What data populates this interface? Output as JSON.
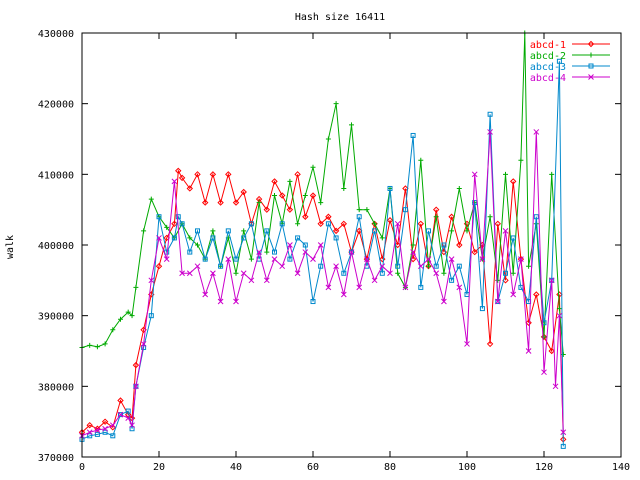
{
  "chart_data": {
    "type": "line",
    "title": "Hash size 16411",
    "xlabel": "",
    "ylabel": "walk",
    "xlim": [
      0,
      140
    ],
    "ylim": [
      370000,
      430000
    ],
    "xticks": [
      0,
      20,
      40,
      60,
      80,
      100,
      120,
      140
    ],
    "yticks": [
      370000,
      380000,
      390000,
      400000,
      410000,
      420000,
      430000
    ],
    "xtick_labels": [
      "0",
      "20",
      "40",
      "60",
      "80",
      "100",
      "120",
      "140"
    ],
    "ytick_labels": [
      "370000",
      "380000",
      "390000",
      "400000",
      "410000",
      "420000",
      "430000"
    ],
    "grid": false,
    "legend_position": "top-right",
    "series": [
      {
        "name": "abcd-1",
        "color": "#ff0000",
        "marker": "diamond",
        "x": [
          0,
          2,
          4,
          6,
          8,
          10,
          12,
          13,
          14,
          16,
          18,
          20,
          22,
          24,
          25,
          26,
          28,
          30,
          32,
          34,
          36,
          38,
          40,
          42,
          44,
          46,
          48,
          50,
          52,
          54,
          56,
          58,
          60,
          62,
          64,
          66,
          68,
          70,
          72,
          74,
          76,
          78,
          80,
          82,
          84,
          86,
          88,
          90,
          92,
          94,
          96,
          98,
          100,
          102,
          104,
          106,
          108,
          110,
          112,
          114,
          116,
          118,
          120,
          122,
          124,
          125
        ],
        "values": [
          373500,
          374500,
          374000,
          375000,
          374200,
          378000,
          376000,
          375500,
          383000,
          388000,
          393000,
          397000,
          401000,
          403000,
          410500,
          409500,
          408000,
          410000,
          406000,
          410000,
          406000,
          410000,
          406000,
          407500,
          403000,
          406500,
          405000,
          409000,
          407000,
          405000,
          410000,
          404000,
          407000,
          403000,
          404000,
          402000,
          403000,
          399000,
          402000,
          398000,
          403000,
          398000,
          403500,
          400000,
          408000,
          398000,
          403000,
          397000,
          405000,
          399000,
          404000,
          400000,
          403000,
          399000,
          400000,
          386000,
          403000,
          395000,
          409000,
          398000,
          389000,
          393000,
          387000,
          385000,
          393000,
          372500
        ]
      },
      {
        "name": "abcd-2",
        "color": "#00aa00",
        "marker": "plus",
        "x": [
          0,
          2,
          4,
          6,
          8,
          10,
          12,
          13,
          14,
          16,
          18,
          20,
          22,
          24,
          26,
          28,
          30,
          32,
          34,
          36,
          38,
          40,
          42,
          44,
          46,
          48,
          50,
          52,
          54,
          56,
          58,
          60,
          62,
          64,
          66,
          68,
          70,
          72,
          74,
          76,
          78,
          80,
          82,
          84,
          86,
          88,
          90,
          92,
          94,
          96,
          98,
          100,
          102,
          104,
          106,
          108,
          110,
          112,
          114,
          115,
          116,
          118,
          120,
          122,
          124,
          125
        ],
        "values": [
          385500,
          385800,
          385600,
          386000,
          388000,
          389500,
          390500,
          390000,
          394000,
          402000,
          406500,
          404000,
          402500,
          401000,
          403000,
          401000,
          400000,
          398000,
          402000,
          397000,
          401000,
          396000,
          402000,
          398000,
          406000,
          399000,
          407000,
          403000,
          409000,
          403000,
          407000,
          411000,
          406000,
          415000,
          420000,
          408000,
          417000,
          405000,
          405000,
          403000,
          401000,
          408000,
          396000,
          394000,
          400000,
          412000,
          397000,
          404000,
          396000,
          402000,
          408000,
          402000,
          406000,
          398000,
          404000,
          395000,
          410000,
          396000,
          412000,
          430000,
          397000,
          403000,
          387000,
          410000,
          391000,
          384500
        ]
      },
      {
        "name": "abcd-3",
        "color": "#0088cc",
        "marker": "square",
        "x": [
          0,
          2,
          4,
          6,
          8,
          10,
          12,
          13,
          14,
          16,
          18,
          20,
          22,
          24,
          25,
          26,
          28,
          30,
          32,
          34,
          36,
          38,
          40,
          42,
          44,
          46,
          48,
          50,
          52,
          54,
          56,
          58,
          60,
          62,
          64,
          66,
          68,
          70,
          72,
          74,
          76,
          78,
          80,
          82,
          84,
          86,
          88,
          90,
          92,
          94,
          96,
          98,
          100,
          102,
          104,
          106,
          108,
          110,
          112,
          114,
          116,
          118,
          120,
          122,
          124,
          125
        ],
        "values": [
          372500,
          373000,
          373200,
          373500,
          373000,
          376000,
          376500,
          374000,
          380000,
          385500,
          390000,
          404000,
          399000,
          401000,
          404000,
          403000,
          399000,
          402000,
          398000,
          401000,
          397000,
          402000,
          398000,
          401000,
          403000,
          398000,
          402000,
          399000,
          403000,
          398000,
          401000,
          400000,
          392000,
          397000,
          403000,
          401000,
          396000,
          399000,
          404000,
          397000,
          402000,
          396000,
          408000,
          397000,
          405000,
          415500,
          394000,
          402000,
          397000,
          400000,
          395000,
          397000,
          393000,
          406000,
          391000,
          418500,
          392000,
          396000,
          401000,
          394000,
          392000,
          404000,
          389000,
          395000,
          426000,
          371500
        ]
      },
      {
        "name": "abcd-4",
        "color": "#cc00cc",
        "marker": "cross",
        "x": [
          0,
          2,
          4,
          6,
          8,
          10,
          12,
          13,
          14,
          16,
          18,
          20,
          22,
          24,
          26,
          28,
          30,
          32,
          34,
          36,
          38,
          40,
          42,
          44,
          46,
          48,
          50,
          52,
          54,
          56,
          58,
          60,
          62,
          64,
          66,
          68,
          70,
          72,
          74,
          76,
          78,
          80,
          82,
          84,
          86,
          88,
          90,
          92,
          94,
          96,
          98,
          100,
          102,
          104,
          106,
          108,
          110,
          112,
          114,
          116,
          118,
          120,
          122,
          123,
          124,
          125
        ],
        "values": [
          373000,
          373500,
          373800,
          374000,
          374500,
          376000,
          375500,
          374500,
          380000,
          386000,
          395000,
          401000,
          398000,
          409000,
          396000,
          396000,
          397000,
          393000,
          396000,
          392000,
          398000,
          392000,
          396000,
          395000,
          399000,
          395000,
          398000,
          397000,
          400000,
          396000,
          399000,
          398000,
          400000,
          394000,
          397000,
          393000,
          399000,
          394000,
          398000,
          395000,
          397000,
          396000,
          403000,
          394000,
          399000,
          397000,
          398000,
          396000,
          392000,
          398000,
          394000,
          386000,
          410000,
          398000,
          416000,
          392000,
          402000,
          393000,
          398000,
          385000,
          416000,
          382000,
          395000,
          380000,
          390000,
          373500
        ]
      }
    ]
  }
}
